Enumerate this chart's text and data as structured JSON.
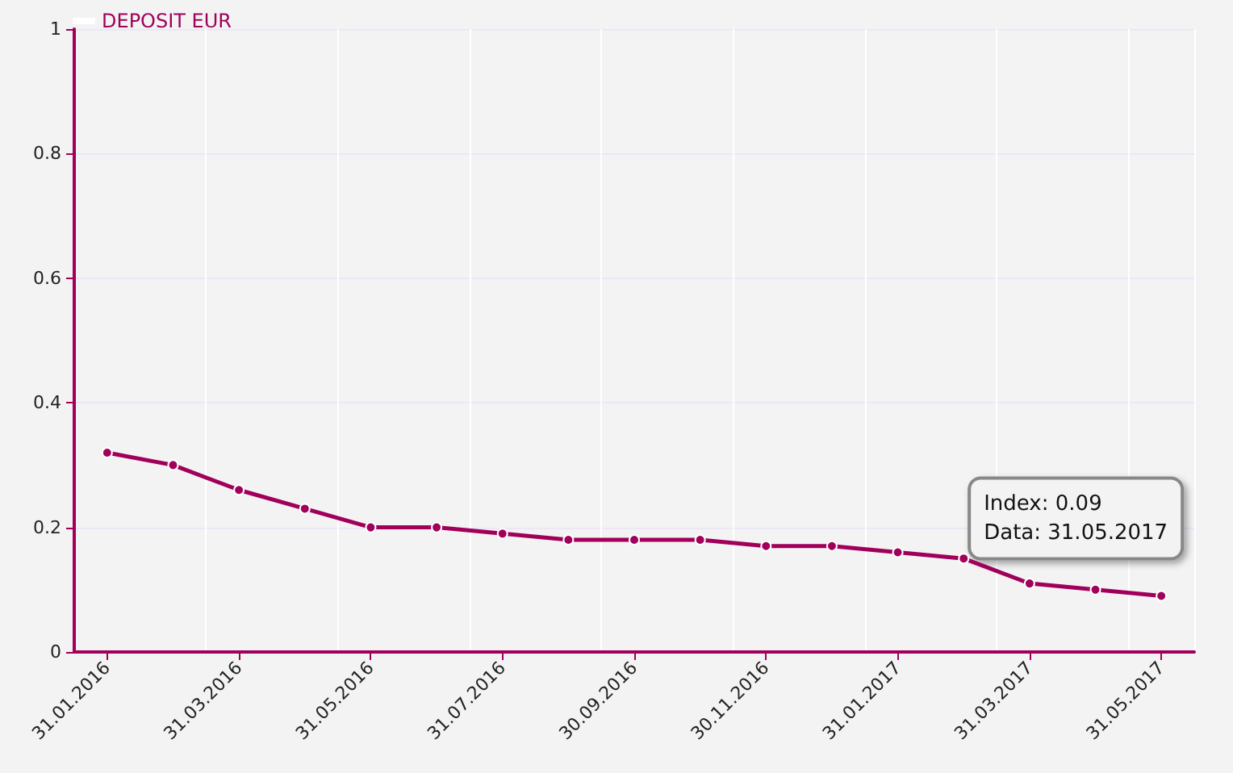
{
  "chart_data": {
    "type": "line",
    "categories": [
      "31.01.2016",
      null,
      "31.03.2016",
      null,
      "31.05.2016",
      null,
      "31.07.2016",
      null,
      "30.09.2016",
      null,
      "30.11.2016",
      null,
      "31.01.2017",
      null,
      "31.03.2017",
      null,
      "31.05.2017"
    ],
    "series": [
      {
        "name": "DEPOSIT EUR",
        "color": "#a0005a",
        "values": [
          0.32,
          0.3,
          0.26,
          0.23,
          0.2,
          0.2,
          0.19,
          0.18,
          0.18,
          0.18,
          0.17,
          0.17,
          0.16,
          0.15,
          0.11,
          0.1,
          0.09
        ]
      }
    ],
    "ylim": [
      0,
      1
    ],
    "yticks": [
      0,
      0.2,
      0.4,
      0.6,
      0.8,
      1
    ],
    "grid": true,
    "legend": "top left",
    "marker": "circle",
    "line_style": "solid",
    "annotations": [
      {
        "text": "Index: 0.09\nData: 31.05.2017",
        "x": "31.05.2017",
        "y": 0.09
      }
    ]
  }
}
